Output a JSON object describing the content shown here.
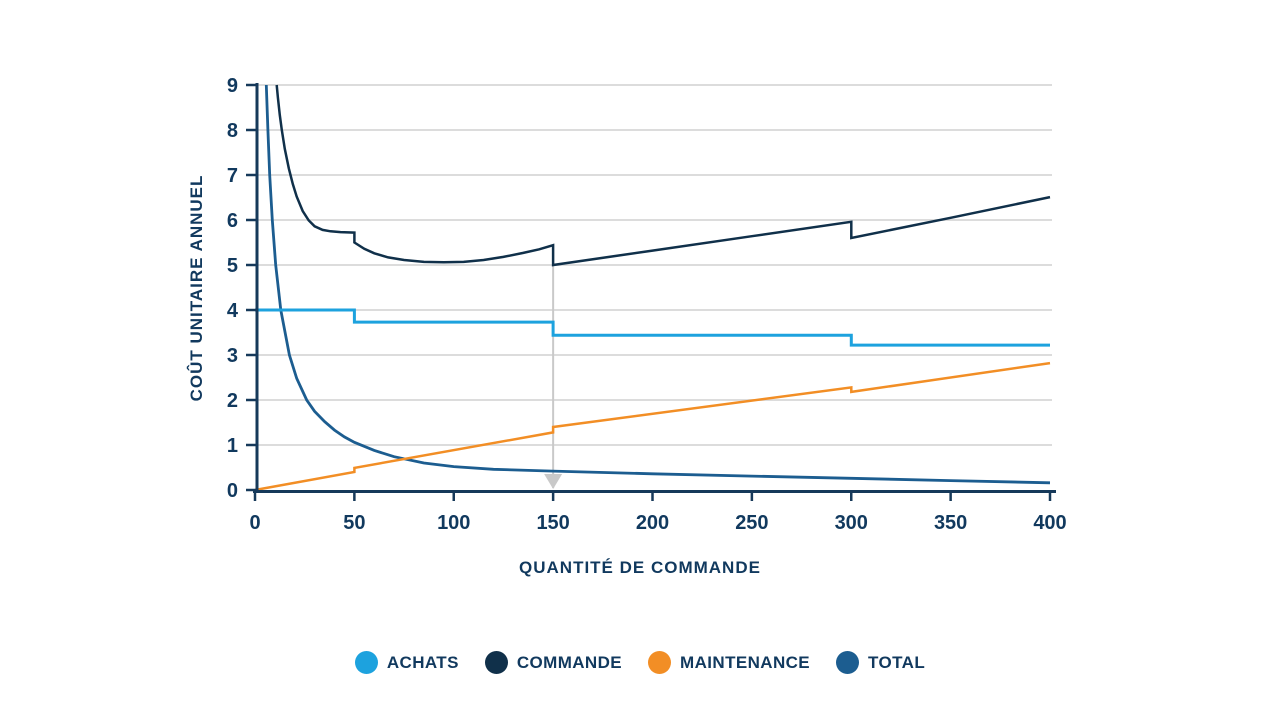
{
  "chart_data": {
    "type": "line",
    "title": "",
    "xlabel": "QUANTITÉ DE COMMANDE",
    "ylabel": "COÛT UNITAIRE ANNUEL",
    "xlim": [
      0,
      400
    ],
    "ylim": [
      0,
      9
    ],
    "x_ticks": [
      0,
      50,
      100,
      150,
      200,
      250,
      300,
      350,
      400
    ],
    "y_ticks": [
      0,
      1,
      2,
      3,
      4,
      5,
      6,
      7,
      8,
      9
    ],
    "grid": "horizontal-only",
    "legend_position": "bottom-center",
    "marker": {
      "x": 150,
      "from_y": 5.44,
      "to_y": 0.05,
      "style": "vertical-line-with-down-arrow",
      "color": "#c9c9c9"
    },
    "series": [
      {
        "name": "ACHATS",
        "color": "#1da2de",
        "width": 3,
        "shape": "step",
        "points": [
          [
            0,
            4
          ],
          [
            50,
            4
          ],
          [
            50,
            3.73
          ],
          [
            150,
            3.73
          ],
          [
            150,
            3.44
          ],
          [
            300,
            3.44
          ],
          [
            300,
            3.22
          ],
          [
            400,
            3.22
          ]
        ]
      },
      {
        "name": "COMMANDE",
        "color": "#10304a",
        "width": 2.5,
        "shape": "u-curve-with-jumps",
        "points": [
          [
            10.9,
            9
          ],
          [
            11.5,
            8.72
          ],
          [
            12.5,
            8.33
          ],
          [
            13.5,
            8.0
          ],
          [
            15,
            7.58
          ],
          [
            17,
            7.15
          ],
          [
            19,
            6.8
          ],
          [
            21,
            6.52
          ],
          [
            24,
            6.2
          ],
          [
            27,
            5.99
          ],
          [
            30,
            5.86
          ],
          [
            34,
            5.78
          ],
          [
            38,
            5.75
          ],
          [
            43,
            5.73
          ],
          [
            50,
            5.72
          ],
          [
            50,
            5.5
          ],
          [
            55,
            5.36
          ],
          [
            60,
            5.26
          ],
          [
            67,
            5.17
          ],
          [
            75,
            5.11
          ],
          [
            85,
            5.07
          ],
          [
            95,
            5.06
          ],
          [
            105,
            5.07
          ],
          [
            115,
            5.11
          ],
          [
            125,
            5.18
          ],
          [
            135,
            5.27
          ],
          [
            143,
            5.35
          ],
          [
            150,
            5.44
          ],
          [
            150,
            5.0
          ],
          [
            200,
            5.32
          ],
          [
            250,
            5.64
          ],
          [
            300,
            5.96
          ],
          [
            300,
            5.6
          ],
          [
            350,
            6.05
          ],
          [
            400,
            6.51
          ]
        ]
      },
      {
        "name": "MAINTENANCE",
        "color": "#f28e25",
        "width": 2.5,
        "shape": "rising-with-jumps",
        "points": [
          [
            0,
            0
          ],
          [
            50,
            0.4
          ],
          [
            50,
            0.49
          ],
          [
            150,
            1.28
          ],
          [
            150,
            1.4
          ],
          [
            300,
            2.28
          ],
          [
            300,
            2.18
          ],
          [
            400,
            2.82
          ]
        ]
      },
      {
        "name": "TOTAL",
        "color": "#1c5d90",
        "width": 2.8,
        "shape": "hyperbola",
        "points": [
          [
            5.7,
            9
          ],
          [
            6.5,
            8.0
          ],
          [
            7.4,
            7.0
          ],
          [
            8.7,
            6.0
          ],
          [
            10.4,
            5.0
          ],
          [
            13,
            4.0
          ],
          [
            17.3,
            3.0
          ],
          [
            21,
            2.48
          ],
          [
            26,
            2.0
          ],
          [
            30,
            1.75
          ],
          [
            35,
            1.52
          ],
          [
            40,
            1.33
          ],
          [
            45,
            1.18
          ],
          [
            50,
            1.06
          ],
          [
            60,
            0.88
          ],
          [
            70,
            0.74
          ],
          [
            85,
            0.6
          ],
          [
            100,
            0.52
          ],
          [
            120,
            0.46
          ],
          [
            150,
            0.42
          ],
          [
            200,
            0.36
          ],
          [
            250,
            0.31
          ],
          [
            300,
            0.26
          ],
          [
            350,
            0.21
          ],
          [
            400,
            0.16
          ]
        ]
      }
    ]
  },
  "colors": {
    "text": "#11395e",
    "axis": "#16395a",
    "grid": "#dcdcdc",
    "marker": "#c9c9c9",
    "background": "#ffffff"
  }
}
